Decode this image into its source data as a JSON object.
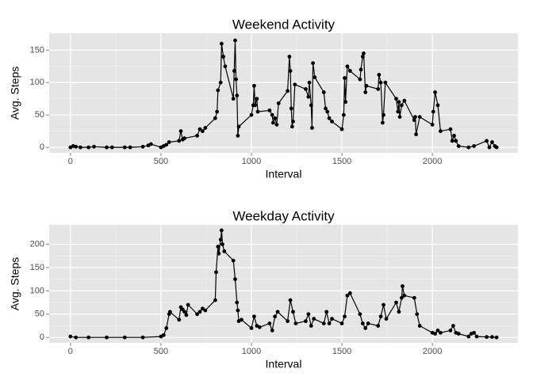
{
  "chart_data": [
    {
      "type": "line",
      "title": "Weekend Activity",
      "xlabel": "Interval",
      "ylabel": "Avg. Steps",
      "x": [
        0,
        15,
        30,
        55,
        100,
        130,
        200,
        230,
        300,
        330,
        400,
        430,
        445,
        500,
        515,
        530,
        545,
        600,
        610,
        620,
        630,
        700,
        715,
        730,
        745,
        800,
        810,
        815,
        830,
        835,
        845,
        855,
        900,
        905,
        910,
        915,
        920,
        925,
        930,
        1000,
        1010,
        1015,
        1020,
        1030,
        1035,
        1100,
        1115,
        1120,
        1130,
        1140,
        1150,
        1200,
        1210,
        1215,
        1220,
        1225,
        1230,
        1240,
        1300,
        1315,
        1320,
        1330,
        1335,
        1340,
        1350,
        1400,
        1410,
        1420,
        1430,
        1445,
        1500,
        1510,
        1515,
        1520,
        1530,
        1545,
        1600,
        1605,
        1615,
        1620,
        1630,
        1635,
        1700,
        1705,
        1715,
        1725,
        1730,
        1740,
        1800,
        1810,
        1815,
        1820,
        1830,
        1845,
        1900,
        1905,
        1910,
        1930,
        2000,
        2005,
        2015,
        2030,
        2045,
        2100,
        2110,
        2120,
        2130,
        2145,
        2200,
        2230,
        2300,
        2315,
        2330,
        2345,
        2355
      ],
      "values": [
        0,
        2,
        1,
        0,
        0,
        1,
        0,
        0,
        0,
        0,
        1,
        3,
        5,
        0,
        2,
        4,
        8,
        10,
        25,
        12,
        14,
        18,
        28,
        25,
        30,
        45,
        55,
        88,
        100,
        160,
        140,
        125,
        75,
        118,
        165,
        105,
        80,
        18,
        32,
        50,
        65,
        95,
        65,
        75,
        55,
        57,
        50,
        38,
        45,
        35,
        68,
        87,
        140,
        118,
        60,
        32,
        40,
        97,
        90,
        78,
        100,
        65,
        30,
        130,
        108,
        85,
        60,
        55,
        45,
        40,
        28,
        50,
        107,
        70,
        125,
        118,
        105,
        120,
        140,
        145,
        85,
        95,
        90,
        112,
        100,
        38,
        50,
        100,
        75,
        55,
        70,
        47,
        65,
        72,
        42,
        47,
        20,
        47,
        35,
        55,
        85,
        65,
        25,
        28,
        10,
        18,
        10,
        2,
        0,
        2,
        10,
        0,
        8,
        2,
        0
      ],
      "color": "#000000",
      "xlim": [
        -117.75,
        2472.75
      ],
      "xticks": [
        0,
        500,
        1000,
        1500,
        2000
      ],
      "ylim": [
        -8.4,
        176.1
      ],
      "yticks": [
        0,
        50,
        100,
        150
      ],
      "grid": true,
      "markers": true
    },
    {
      "type": "line",
      "title": "Weekday Activity",
      "xlabel": "Interval",
      "ylabel": "Avg. Steps",
      "x": [
        0,
        30,
        100,
        200,
        300,
        400,
        500,
        515,
        530,
        545,
        550,
        600,
        610,
        620,
        630,
        640,
        650,
        700,
        715,
        730,
        745,
        800,
        805,
        815,
        820,
        830,
        835,
        840,
        850,
        900,
        910,
        920,
        925,
        930,
        945,
        1000,
        1015,
        1030,
        1045,
        1100,
        1115,
        1130,
        1145,
        1200,
        1215,
        1230,
        1245,
        1300,
        1315,
        1330,
        1345,
        1400,
        1415,
        1430,
        1445,
        1500,
        1515,
        1530,
        1545,
        1600,
        1615,
        1630,
        1645,
        1700,
        1715,
        1730,
        1745,
        1800,
        1815,
        1830,
        1835,
        1845,
        1900,
        1915,
        1930,
        2000,
        2015,
        2030,
        2045,
        2100,
        2115,
        2130,
        2145,
        2200,
        2215,
        2230,
        2245,
        2300,
        2330,
        2355
      ],
      "values": [
        2,
        0,
        0,
        0,
        0,
        0,
        2,
        5,
        20,
        50,
        55,
        38,
        65,
        60,
        55,
        48,
        70,
        50,
        55,
        62,
        58,
        80,
        140,
        195,
        180,
        210,
        230,
        200,
        185,
        165,
        125,
        75,
        58,
        35,
        38,
        20,
        45,
        25,
        22,
        30,
        15,
        45,
        55,
        35,
        80,
        55,
        30,
        35,
        50,
        25,
        40,
        30,
        55,
        30,
        40,
        30,
        45,
        90,
        95,
        50,
        30,
        20,
        30,
        25,
        45,
        70,
        40,
        75,
        55,
        85,
        110,
        90,
        85,
        50,
        25,
        10,
        8,
        15,
        10,
        15,
        25,
        10,
        8,
        2,
        8,
        10,
        2,
        1,
        1,
        0
      ],
      "color": "#000000",
      "xlim": [
        -117.75,
        2472.75
      ],
      "xticks": [
        0,
        500,
        1000,
        1500,
        2000
      ],
      "ylim": [
        -11.5,
        241.7
      ],
      "yticks": [
        0,
        50,
        100,
        150,
        200
      ],
      "grid": true,
      "markers": true
    }
  ]
}
